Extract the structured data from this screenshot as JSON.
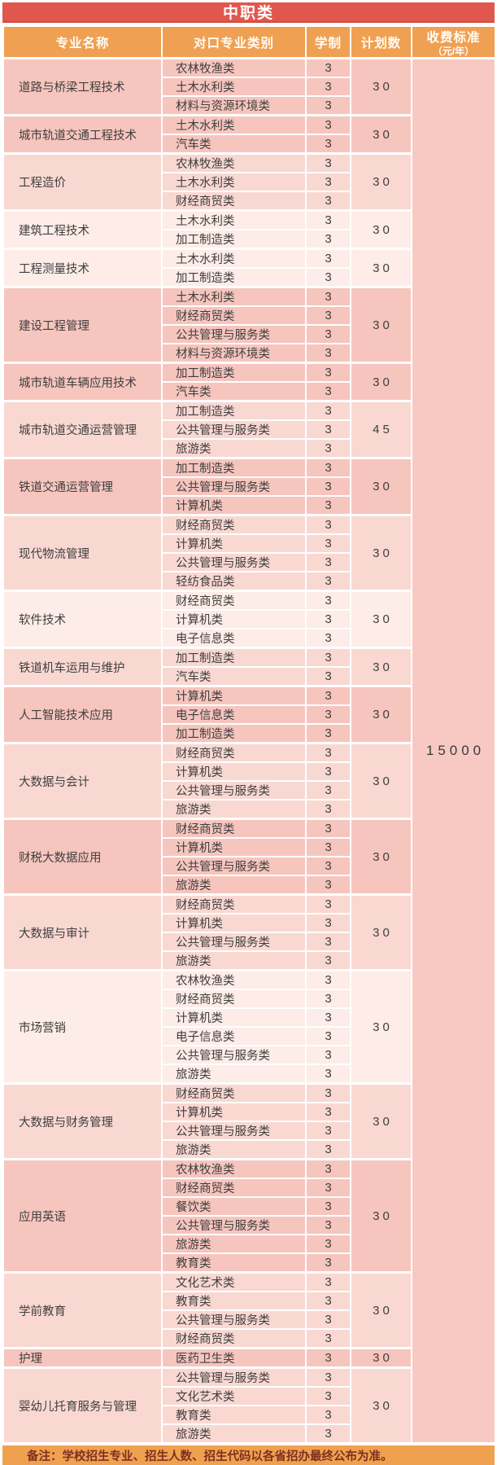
{
  "title": "中职类",
  "columns": {
    "major": "专业名称",
    "category": "对口专业类别",
    "duration": "学制",
    "plan": "计划数",
    "fee_line1": "收费标准",
    "fee_line2": "（元/年）"
  },
  "fee_value": "15000",
  "note": "备注：学校招生专业、招生人数、招生代码以各省招办最终公布为准。",
  "groups": [
    {
      "major": "道路与桥梁工程技术",
      "tone": "pink",
      "plan": "30",
      "rows": [
        {
          "category": "农林牧渔类",
          "duration": "3"
        },
        {
          "category": "土木水利类",
          "duration": "3"
        },
        {
          "category": "材料与资源环境类",
          "duration": "3"
        }
      ]
    },
    {
      "major": "城市轨道交通工程技术",
      "tone": "pink",
      "plan": "30",
      "rows": [
        {
          "category": "土木水利类",
          "duration": "3"
        },
        {
          "category": "汽车类",
          "duration": "3"
        }
      ]
    },
    {
      "major": "工程造价",
      "tone": "mid",
      "plan": "30",
      "rows": [
        {
          "category": "农林牧渔类",
          "duration": "3"
        },
        {
          "category": "土木水利类",
          "duration": "3"
        },
        {
          "category": "财经商贸类",
          "duration": "3"
        }
      ]
    },
    {
      "major": "建筑工程技术",
      "tone": "cream",
      "plan": "30",
      "rows": [
        {
          "category": "土木水利类",
          "duration": "3"
        },
        {
          "category": "加工制造类",
          "duration": "3"
        }
      ]
    },
    {
      "major": "工程测量技术",
      "tone": "cream",
      "plan": "30",
      "rows": [
        {
          "category": "土木水利类",
          "duration": "3"
        },
        {
          "category": "加工制造类",
          "duration": "3"
        }
      ]
    },
    {
      "major": "建设工程管理",
      "tone": "pink",
      "plan": "30",
      "rows": [
        {
          "category": "土木水利类",
          "duration": "3"
        },
        {
          "category": "财经商贸类",
          "duration": "3"
        },
        {
          "category": "公共管理与服务类",
          "duration": "3"
        },
        {
          "category": "材料与资源环境类",
          "duration": "3"
        }
      ]
    },
    {
      "major": "城市轨道车辆应用技术",
      "tone": "pink",
      "plan": "30",
      "rows": [
        {
          "category": "加工制造类",
          "duration": "3"
        },
        {
          "category": "汽车类",
          "duration": "3"
        }
      ]
    },
    {
      "major": "城市轨道交通运营管理",
      "tone": "mid",
      "plan": "45",
      "rows": [
        {
          "category": "加工制造类",
          "duration": "3"
        },
        {
          "category": "公共管理与服务类",
          "duration": "3"
        },
        {
          "category": "旅游类",
          "duration": "3"
        }
      ]
    },
    {
      "major": "铁道交通运营管理",
      "tone": "pink",
      "plan": "30",
      "rows": [
        {
          "category": "加工制造类",
          "duration": "3"
        },
        {
          "category": "公共管理与服务类",
          "duration": "3"
        },
        {
          "category": "计算机类",
          "duration": "3"
        }
      ]
    },
    {
      "major": "现代物流管理",
      "tone": "mid",
      "plan": "30",
      "rows": [
        {
          "category": "财经商贸类",
          "duration": "3"
        },
        {
          "category": "计算机类",
          "duration": "3"
        },
        {
          "category": "公共管理与服务类",
          "duration": "3"
        },
        {
          "category": "轻纺食品类",
          "duration": "3"
        }
      ]
    },
    {
      "major": "软件技术",
      "tone": "cream",
      "plan": "30",
      "rows": [
        {
          "category": "财经商贸类",
          "duration": "3"
        },
        {
          "category": "计算机类",
          "duration": "3"
        },
        {
          "category": "电子信息类",
          "duration": "3"
        }
      ]
    },
    {
      "major": "铁道机车运用与维护",
      "tone": "mid",
      "plan": "30",
      "rows": [
        {
          "category": "加工制造类",
          "duration": "3"
        },
        {
          "category": "汽车类",
          "duration": "3"
        }
      ]
    },
    {
      "major": "人工智能技术应用",
      "tone": "pink",
      "plan": "30",
      "rows": [
        {
          "category": "计算机类",
          "duration": "3"
        },
        {
          "category": "电子信息类",
          "duration": "3"
        },
        {
          "category": "加工制造类",
          "duration": "3"
        }
      ]
    },
    {
      "major": "大数据与会计",
      "tone": "mid",
      "plan": "30",
      "rows": [
        {
          "category": "财经商贸类",
          "duration": "3"
        },
        {
          "category": "计算机类",
          "duration": "3"
        },
        {
          "category": "公共管理与服务类",
          "duration": "3"
        },
        {
          "category": "旅游类",
          "duration": "3"
        }
      ]
    },
    {
      "major": "财税大数据应用",
      "tone": "pink",
      "plan": "30",
      "rows": [
        {
          "category": "财经商贸类",
          "duration": "3"
        },
        {
          "category": "计算机类",
          "duration": "3"
        },
        {
          "category": "公共管理与服务类",
          "duration": "3"
        },
        {
          "category": "旅游类",
          "duration": "3"
        }
      ]
    },
    {
      "major": "大数据与审计",
      "tone": "mid",
      "plan": "30",
      "rows": [
        {
          "category": "财经商贸类",
          "duration": "3"
        },
        {
          "category": "计算机类",
          "duration": "3"
        },
        {
          "category": "公共管理与服务类",
          "duration": "3"
        },
        {
          "category": "旅游类",
          "duration": "3"
        }
      ]
    },
    {
      "major": "市场营销",
      "tone": "cream",
      "plan": "30",
      "rows": [
        {
          "category": "农林牧渔类",
          "duration": "3"
        },
        {
          "category": "财经商贸类",
          "duration": "3"
        },
        {
          "category": "计算机类",
          "duration": "3"
        },
        {
          "category": "电子信息类",
          "duration": "3"
        },
        {
          "category": "公共管理与服务类",
          "duration": "3"
        },
        {
          "category": "旅游类",
          "duration": "3"
        }
      ]
    },
    {
      "major": "大数据与财务管理",
      "tone": "mid",
      "plan": "30",
      "rows": [
        {
          "category": "财经商贸类",
          "duration": "3"
        },
        {
          "category": "计算机类",
          "duration": "3"
        },
        {
          "category": "公共管理与服务类",
          "duration": "3"
        },
        {
          "category": "旅游类",
          "duration": "3"
        }
      ]
    },
    {
      "major": "应用英语",
      "tone": "pink",
      "plan": "30",
      "rows": [
        {
          "category": "农林牧渔类",
          "duration": "3"
        },
        {
          "category": "财经商贸类",
          "duration": "3"
        },
        {
          "category": "餐饮类",
          "duration": "3"
        },
        {
          "category": "公共管理与服务类",
          "duration": "3"
        },
        {
          "category": "旅游类",
          "duration": "3"
        },
        {
          "category": "教育类",
          "duration": "3"
        }
      ]
    },
    {
      "major": "学前教育",
      "tone": "mid",
      "plan": "30",
      "rows": [
        {
          "category": "文化艺术类",
          "duration": "3"
        },
        {
          "category": "教育类",
          "duration": "3"
        },
        {
          "category": "公共管理与服务类",
          "duration": "3"
        },
        {
          "category": "财经商贸类",
          "duration": "3"
        }
      ]
    },
    {
      "major": "护理",
      "tone": "pink",
      "plan": "30",
      "rows": [
        {
          "category": "医药卫生类",
          "duration": "3"
        }
      ]
    },
    {
      "major": "婴幼儿托育服务与管理",
      "tone": "mid",
      "plan": "30",
      "rows": [
        {
          "category": "公共管理与服务类",
          "duration": "3"
        },
        {
          "category": "文化艺术类",
          "duration": "3"
        },
        {
          "category": "教育类",
          "duration": "3"
        },
        {
          "category": "旅游类",
          "duration": "3"
        }
      ]
    }
  ],
  "colors": {
    "header_red": "#e2574d",
    "header_orange": "#f0a053",
    "footer_orange": "#f0a14f",
    "group_pink": "#f6c5be",
    "group_mid": "#f9d8d2",
    "group_cream": "#fdece7",
    "fee_column_pink": "#f8c9c2",
    "body_text": "#3e3e3e",
    "note_text": "#7c3122"
  }
}
